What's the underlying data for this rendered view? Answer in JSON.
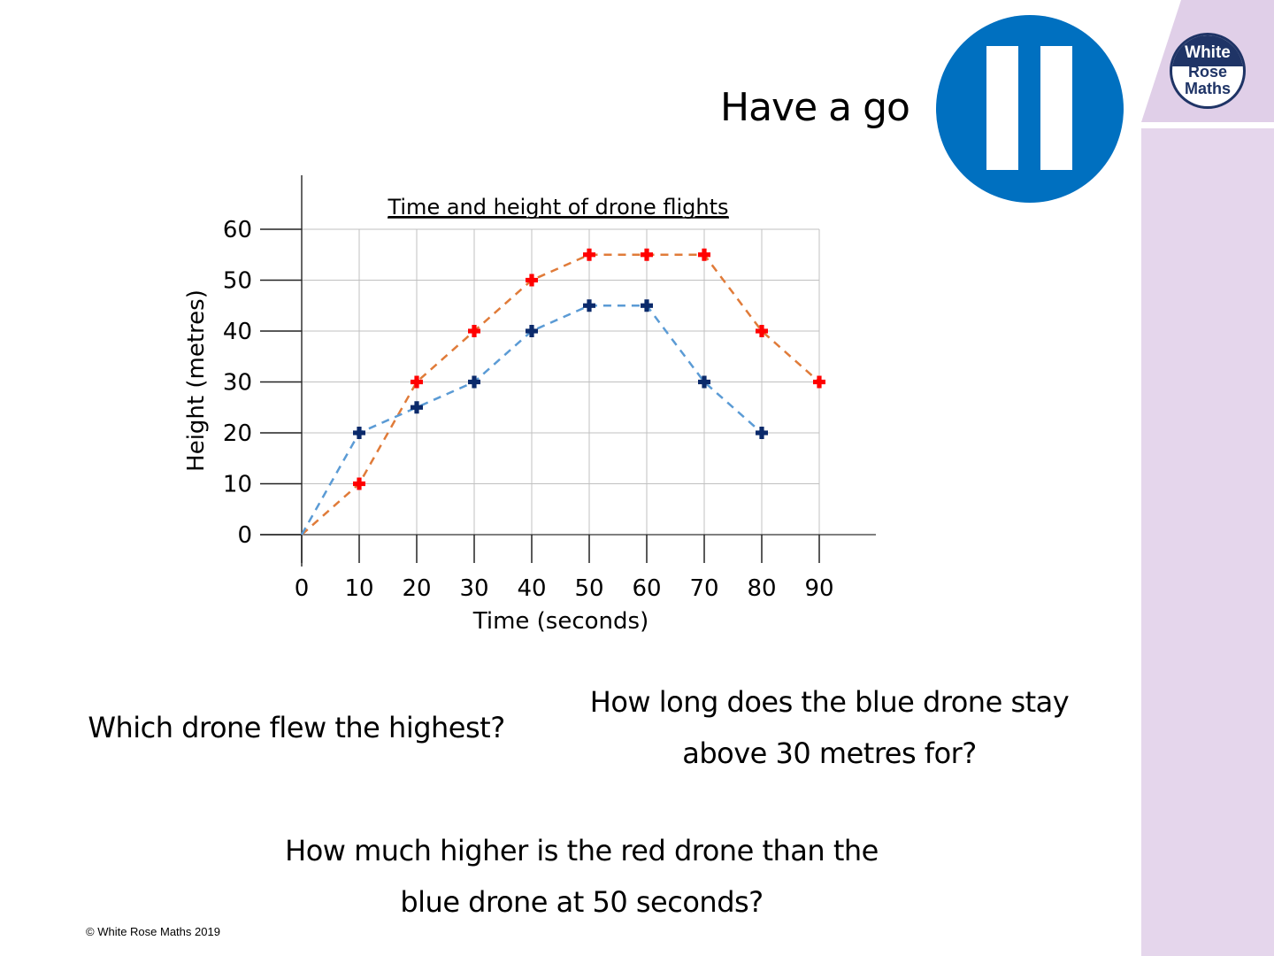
{
  "header": {
    "title": "Have a go",
    "pause_icon": "pause-icon",
    "logo": {
      "line1": "White",
      "line2": "Rose",
      "line3": "Maths"
    }
  },
  "questions": {
    "q1": "Which drone flew the highest?",
    "q2_line1": "How long does the blue drone stay",
    "q2_line2": "above 30 metres for?",
    "q3_line1": "How much higher is the red drone than the",
    "q3_line2": "blue drone at 50 seconds?"
  },
  "footer": {
    "copyright": "© White Rose Maths 2019"
  },
  "colors": {
    "pause_blue": "#0070c0",
    "sidebar": "#e5d6ec",
    "logo_navy": "#1f3466",
    "red_marker": "#ff0000",
    "red_line": "#e07b39",
    "blue_marker": "#0b2a6b",
    "blue_line": "#5b9bd5"
  },
  "chart_data": {
    "type": "line",
    "title": "Time and height of drone flights",
    "xlabel": "Time (seconds)",
    "ylabel": "Height (metres)",
    "x_ticks": [
      "0",
      "10",
      "20",
      "30",
      "40",
      "50",
      "60",
      "70",
      "80",
      "90"
    ],
    "y_ticks": [
      "0",
      "10",
      "20",
      "30",
      "40",
      "50",
      "60"
    ],
    "xlim": [
      0,
      90
    ],
    "ylim": [
      0,
      60
    ],
    "grid": true,
    "legend": "none",
    "series": [
      {
        "name": "Red drone",
        "marker": "plus",
        "line": "dashed",
        "x": [
          0,
          10,
          20,
          30,
          40,
          50,
          60,
          70,
          80,
          90
        ],
        "values": [
          0,
          10,
          30,
          40,
          50,
          55,
          55,
          55,
          40,
          30
        ]
      },
      {
        "name": "Blue drone",
        "marker": "plus",
        "line": "dashed",
        "x": [
          0,
          10,
          20,
          30,
          40,
          50,
          60,
          70,
          80
        ],
        "values": [
          0,
          20,
          25,
          30,
          40,
          45,
          45,
          30,
          20
        ]
      }
    ]
  }
}
